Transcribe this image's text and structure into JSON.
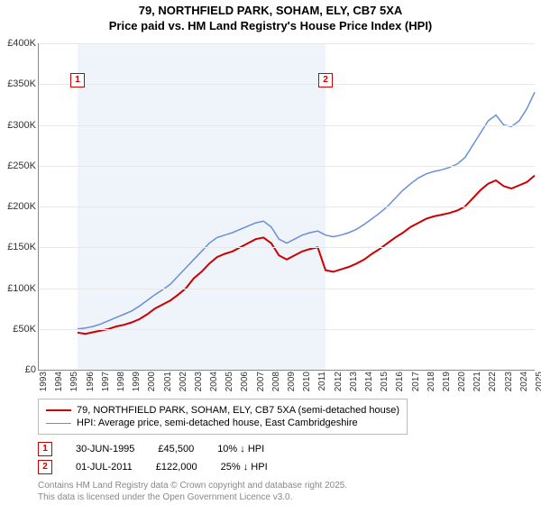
{
  "title_line1": "79, NORTHFIELD PARK, SOHAM, ELY, CB7 5XA",
  "title_line2": "Price paid vs. HM Land Registry's House Price Index (HPI)",
  "chart": {
    "type": "line",
    "background_color": "#ffffff",
    "grid_color": "#e8e8e8",
    "shade_color": "#e8eef8",
    "x_min_year": 1993,
    "x_max_year": 2025,
    "ylim": [
      0,
      400000
    ],
    "ytick_step": 50000,
    "yticks": [
      "£0",
      "£50K",
      "£100K",
      "£150K",
      "£200K",
      "£250K",
      "£300K",
      "£350K",
      "£400K"
    ],
    "xticks": [
      "1993",
      "1994",
      "1995",
      "1996",
      "1997",
      "1998",
      "1999",
      "2000",
      "2001",
      "2002",
      "2003",
      "2004",
      "2005",
      "2006",
      "2007",
      "2008",
      "2009",
      "2010",
      "2011",
      "2012",
      "2013",
      "2014",
      "2015",
      "2016",
      "2017",
      "2018",
      "2019",
      "2020",
      "2021",
      "2022",
      "2023",
      "2024",
      "2025"
    ],
    "shade_start_year": 1995.5,
    "shade_end_year": 2011.5,
    "markers": [
      {
        "label": "1",
        "year": 1995.5,
        "y": 355000
      },
      {
        "label": "2",
        "year": 2011.5,
        "y": 355000
      }
    ],
    "series": [
      {
        "name": "price_paid",
        "color": "#cc0000",
        "width": 2,
        "points": [
          [
            1995.5,
            45500
          ],
          [
            1996,
            44000
          ],
          [
            1996.5,
            46000
          ],
          [
            1997,
            48000
          ],
          [
            1997.5,
            50000
          ],
          [
            1998,
            53000
          ],
          [
            1998.5,
            55000
          ],
          [
            1999,
            58000
          ],
          [
            1999.5,
            62000
          ],
          [
            2000,
            68000
          ],
          [
            2000.5,
            75000
          ],
          [
            2001,
            80000
          ],
          [
            2001.5,
            85000
          ],
          [
            2002,
            92000
          ],
          [
            2002.5,
            100000
          ],
          [
            2003,
            112000
          ],
          [
            2003.5,
            120000
          ],
          [
            2004,
            130000
          ],
          [
            2004.5,
            138000
          ],
          [
            2005,
            142000
          ],
          [
            2005.5,
            145000
          ],
          [
            2006,
            150000
          ],
          [
            2006.5,
            155000
          ],
          [
            2007,
            160000
          ],
          [
            2007.5,
            162000
          ],
          [
            2008,
            155000
          ],
          [
            2008.5,
            140000
          ],
          [
            2009,
            135000
          ],
          [
            2009.5,
            140000
          ],
          [
            2010,
            145000
          ],
          [
            2010.5,
            148000
          ],
          [
            2011,
            150000
          ],
          [
            2011.5,
            122000
          ],
          [
            2012,
            120000
          ],
          [
            2012.5,
            123000
          ],
          [
            2013,
            126000
          ],
          [
            2013.5,
            130000
          ],
          [
            2014,
            135000
          ],
          [
            2014.5,
            142000
          ],
          [
            2015,
            148000
          ],
          [
            2015.5,
            155000
          ],
          [
            2016,
            162000
          ],
          [
            2016.5,
            168000
          ],
          [
            2017,
            175000
          ],
          [
            2017.5,
            180000
          ],
          [
            2018,
            185000
          ],
          [
            2018.5,
            188000
          ],
          [
            2019,
            190000
          ],
          [
            2019.5,
            192000
          ],
          [
            2020,
            195000
          ],
          [
            2020.5,
            200000
          ],
          [
            2021,
            210000
          ],
          [
            2021.5,
            220000
          ],
          [
            2022,
            228000
          ],
          [
            2022.5,
            232000
          ],
          [
            2023,
            225000
          ],
          [
            2023.5,
            222000
          ],
          [
            2024,
            226000
          ],
          [
            2024.5,
            230000
          ],
          [
            2025,
            238000
          ]
        ]
      },
      {
        "name": "hpi",
        "color": "#6a8fd4",
        "width": 1.5,
        "points": [
          [
            1995.5,
            50000
          ],
          [
            1996,
            51000
          ],
          [
            1996.5,
            53000
          ],
          [
            1997,
            56000
          ],
          [
            1997.5,
            60000
          ],
          [
            1998,
            64000
          ],
          [
            1998.5,
            68000
          ],
          [
            1999,
            72000
          ],
          [
            1999.5,
            78000
          ],
          [
            2000,
            85000
          ],
          [
            2000.5,
            92000
          ],
          [
            2001,
            98000
          ],
          [
            2001.5,
            105000
          ],
          [
            2002,
            115000
          ],
          [
            2002.5,
            125000
          ],
          [
            2003,
            135000
          ],
          [
            2003.5,
            145000
          ],
          [
            2004,
            155000
          ],
          [
            2004.5,
            162000
          ],
          [
            2005,
            165000
          ],
          [
            2005.5,
            168000
          ],
          [
            2006,
            172000
          ],
          [
            2006.5,
            176000
          ],
          [
            2007,
            180000
          ],
          [
            2007.5,
            182000
          ],
          [
            2008,
            175000
          ],
          [
            2008.5,
            160000
          ],
          [
            2009,
            155000
          ],
          [
            2009.5,
            160000
          ],
          [
            2010,
            165000
          ],
          [
            2010.5,
            168000
          ],
          [
            2011,
            170000
          ],
          [
            2011.5,
            165000
          ],
          [
            2012,
            163000
          ],
          [
            2012.5,
            165000
          ],
          [
            2013,
            168000
          ],
          [
            2013.5,
            172000
          ],
          [
            2014,
            178000
          ],
          [
            2014.5,
            185000
          ],
          [
            2015,
            192000
          ],
          [
            2015.5,
            200000
          ],
          [
            2016,
            210000
          ],
          [
            2016.5,
            220000
          ],
          [
            2017,
            228000
          ],
          [
            2017.5,
            235000
          ],
          [
            2018,
            240000
          ],
          [
            2018.5,
            243000
          ],
          [
            2019,
            245000
          ],
          [
            2019.5,
            248000
          ],
          [
            2020,
            252000
          ],
          [
            2020.5,
            260000
          ],
          [
            2021,
            275000
          ],
          [
            2021.5,
            290000
          ],
          [
            2022,
            305000
          ],
          [
            2022.5,
            312000
          ],
          [
            2023,
            300000
          ],
          [
            2023.5,
            298000
          ],
          [
            2024,
            305000
          ],
          [
            2024.5,
            320000
          ],
          [
            2025,
            340000
          ]
        ]
      }
    ]
  },
  "legend": {
    "items": [
      {
        "color": "#cc0000",
        "width": 2,
        "label": "79, NORTHFIELD PARK, SOHAM, ELY, CB7 5XA (semi-detached house)"
      },
      {
        "color": "#6a8fd4",
        "width": 1.5,
        "label": "HPI: Average price, semi-detached house, East Cambridgeshire"
      }
    ]
  },
  "footnotes": [
    {
      "marker": "1",
      "date": "30-JUN-1995",
      "price": "£45,500",
      "delta": "10% ↓ HPI"
    },
    {
      "marker": "2",
      "date": "01-JUL-2011",
      "price": "£122,000",
      "delta": "25% ↓ HPI"
    }
  ],
  "credit_line1": "Contains HM Land Registry data © Crown copyright and database right 2025.",
  "credit_line2": "This data is licensed under the Open Government Licence v3.0."
}
